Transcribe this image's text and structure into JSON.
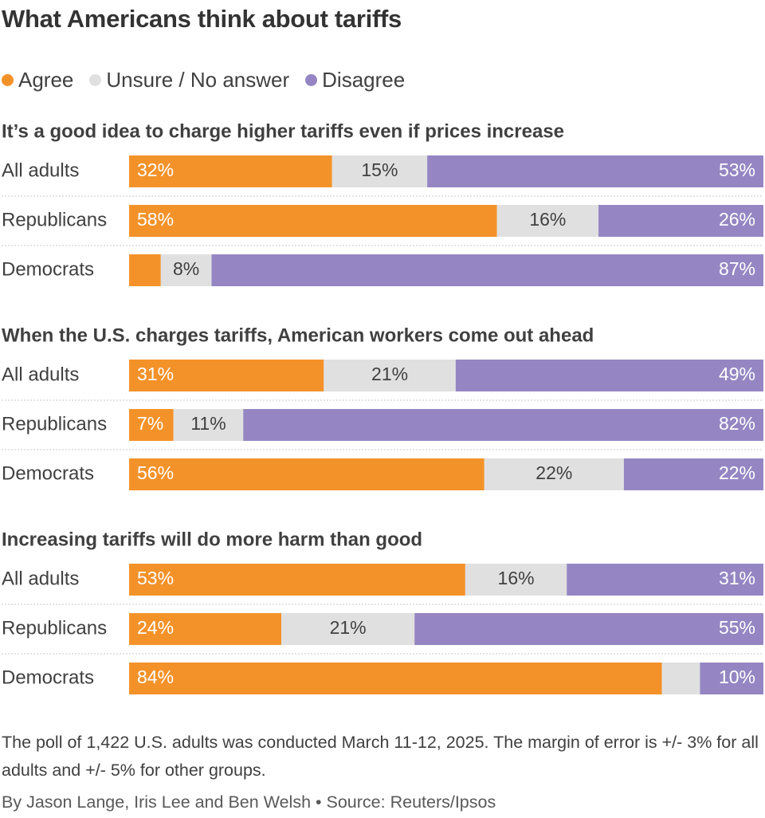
{
  "title": "What Americans think about tariffs",
  "legend": [
    {
      "label": "Agree",
      "color": "#f4922a"
    },
    {
      "label": "Unsure / No answer",
      "color": "#e0e0e0"
    },
    {
      "label": "Disagree",
      "color": "#9586c3"
    }
  ],
  "chart_data": {
    "type": "bar",
    "stacked": true,
    "orientation": "horizontal",
    "series_names": [
      "Agree",
      "Unsure / No answer",
      "Disagree"
    ],
    "panels": [
      {
        "question": "It’s a good idea to charge higher tariffs even if prices increase",
        "rows": [
          {
            "group": "All adults",
            "values": [
              32,
              15,
              53
            ],
            "labels": [
              "32%",
              "15%",
              "53%"
            ]
          },
          {
            "group": "Republicans",
            "values": [
              58,
              16,
              26
            ],
            "labels": [
              "58%",
              "16%",
              "26%"
            ]
          },
          {
            "group": "Democrats",
            "values": [
              5,
              8,
              87
            ],
            "labels": [
              "",
              "8%",
              "87%"
            ]
          }
        ]
      },
      {
        "question": "When the U.S. charges tariffs, American workers come out ahead",
        "rows": [
          {
            "group": "All adults",
            "values": [
              31,
              21,
              49
            ],
            "labels": [
              "31%",
              "21%",
              "49%"
            ]
          },
          {
            "group": "Republicans",
            "values": [
              7,
              11,
              82
            ],
            "labels": [
              "7%",
              "11%",
              "82%"
            ]
          },
          {
            "group": "Democrats",
            "values": [
              56,
              22,
              22
            ],
            "labels": [
              "56%",
              "22%",
              "22%"
            ]
          }
        ]
      },
      {
        "question": "Increasing tariffs will do more harm than good",
        "rows": [
          {
            "group": "All adults",
            "values": [
              53,
              16,
              31
            ],
            "labels": [
              "53%",
              "16%",
              "31%"
            ]
          },
          {
            "group": "Republicans",
            "values": [
              24,
              21,
              55
            ],
            "labels": [
              "24%",
              "21%",
              "55%"
            ]
          },
          {
            "group": "Democrats",
            "values": [
              84,
              6,
              10
            ],
            "labels": [
              "84%",
              "",
              "10%"
            ]
          }
        ]
      }
    ]
  },
  "note": "The poll of 1,422 U.S. adults was conducted March 11-12, 2025. The margin of error is +/- 3% for all adults and +/- 5% for other groups.",
  "byline": "By Jason Lange, Iris Lee and Ben Welsh • Source: Reuters/Ipsos"
}
